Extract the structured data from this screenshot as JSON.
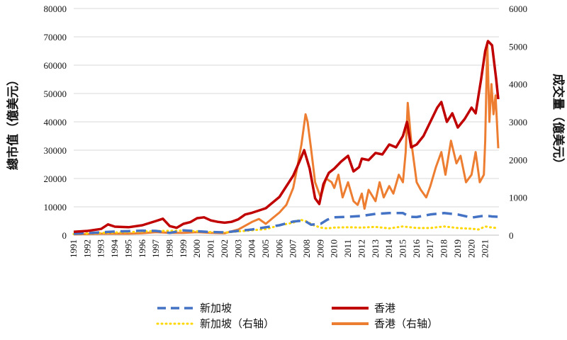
{
  "chart_data": {
    "type": "line",
    "xlabel": "",
    "ylabel": "總市值（億美元）",
    "ylabel_right": "成交量（億美元）",
    "ylim": [
      0,
      80000
    ],
    "ylim_right": [
      0,
      6000
    ],
    "yticks": [
      0,
      10000,
      20000,
      30000,
      40000,
      50000,
      60000,
      70000,
      80000
    ],
    "yticks_right": [
      0,
      1000,
      2000,
      3000,
      4000,
      5000,
      6000
    ],
    "xlim": [
      1991,
      2022
    ],
    "xticks": [
      "1991",
      "1992",
      "1993",
      "1994",
      "1995",
      "1996",
      "1997",
      "1998",
      "1999",
      "2000",
      "2001",
      "2002",
      "2003",
      "2004",
      "2005",
      "2006",
      "2007",
      "2008",
      "2009",
      "2010",
      "2011",
      "2012",
      "2013",
      "2014",
      "2015",
      "2016",
      "2017",
      "2018",
      "2019",
      "2020",
      "2021"
    ],
    "grid": "horizontal",
    "legend_position": "bottom",
    "series": [
      {
        "name": "新加坡",
        "axis": "left",
        "color": "#4472C4",
        "style": "dashed",
        "x": [
          1991,
          1992,
          1993,
          1994,
          1995,
          1996,
          1997,
          1998,
          1999,
          2000,
          2001,
          2002,
          2003,
          2004,
          2005,
          2006,
          2007,
          2007.8,
          2008.3,
          2009,
          2009.5,
          2010,
          2011,
          2012,
          2013,
          2014,
          2015,
          2015.5,
          2016,
          2017,
          2018,
          2019,
          2020,
          2021,
          2021.5,
          2021.9
        ],
        "values": [
          500,
          700,
          1000,
          1300,
          1400,
          1600,
          1500,
          800,
          1700,
          1400,
          1100,
          1000,
          1500,
          2000,
          2800,
          3500,
          4800,
          5200,
          3700,
          4000,
          5500,
          6300,
          6500,
          6800,
          7500,
          7800,
          7800,
          6500,
          6400,
          7300,
          7800,
          7300,
          6200,
          6900,
          6600,
          6500
        ]
      },
      {
        "name": "香港",
        "axis": "left",
        "color": "#C00000",
        "style": "solid",
        "x": [
          1991,
          1992,
          1993,
          1993.5,
          1994,
          1995,
          1996,
          1997,
          1997.5,
          1998,
          1998.5,
          1999,
          1999.5,
          2000,
          2000.5,
          2001,
          2001.5,
          2002,
          2002.5,
          2003,
          2003.5,
          2004,
          2005,
          2006,
          2007,
          2007.5,
          2007.8,
          2008.2,
          2008.6,
          2008.9,
          2009.2,
          2009.6,
          2010,
          2010.5,
          2011,
          2011.4,
          2011.8,
          2012,
          2012.5,
          2013,
          2013.5,
          2014,
          2014.5,
          2015,
          2015.3,
          2015.6,
          2016,
          2016.5,
          2017,
          2017.5,
          2017.8,
          2018.2,
          2018.6,
          2019,
          2019.5,
          2020,
          2020.3,
          2020.7,
          2021,
          2021.2,
          2021.5,
          2021.8,
          2021.95
        ],
        "values": [
          1200,
          1500,
          2200,
          3800,
          3000,
          2800,
          3500,
          5000,
          5800,
          3200,
          2600,
          4000,
          4600,
          6000,
          6300,
          5200,
          4700,
          4400,
          4700,
          5600,
          7300,
          7900,
          9500,
          13500,
          21000,
          26500,
          30000,
          23500,
          13000,
          11000,
          18000,
          22000,
          23500,
          26000,
          28000,
          22500,
          24000,
          27000,
          26500,
          29000,
          28500,
          32000,
          31000,
          35000,
          40000,
          31000,
          32000,
          35000,
          40000,
          45000,
          47000,
          40000,
          43000,
          38000,
          41000,
          45000,
          43000,
          55000,
          65000,
          68500,
          67000,
          55000,
          48000
        ]
      },
      {
        "name": "新加坡（右轴）",
        "axis": "right",
        "color": "#FFD700",
        "style": "dotted",
        "x": [
          1991,
          1993,
          1995,
          1997,
          1999,
          2001,
          2002,
          2003,
          2004,
          2005,
          2006,
          2007,
          2007.5,
          2008,
          2008.5,
          2009,
          2009.5,
          2010,
          2011,
          2012,
          2013,
          2014,
          2015,
          2016,
          2017,
          2018,
          2019,
          2020,
          2020.5,
          2021,
          2021.5,
          2021.95
        ],
        "values": [
          30,
          60,
          80,
          110,
          120,
          80,
          70,
          100,
          130,
          160,
          260,
          330,
          410,
          360,
          260,
          200,
          180,
          200,
          210,
          200,
          220,
          180,
          230,
          190,
          190,
          230,
          190,
          170,
          150,
          230,
          200,
          190
        ]
      },
      {
        "name": "香港（右轴）",
        "axis": "right",
        "color": "#ED7D31",
        "style": "solid",
        "x": [
          1991,
          1992,
          1993,
          1994,
          1995,
          1996,
          1997,
          1998,
          1999,
          2000,
          2001,
          2002,
          2003,
          2003.5,
          2004,
          2004.5,
          2005,
          2005.5,
          2006,
          2006.5,
          2007,
          2007.3,
          2007.6,
          2007.9,
          2008.05,
          2008.3,
          2008.6,
          2009,
          2009.4,
          2009.8,
          2010,
          2010.3,
          2010.6,
          2011,
          2011.4,
          2011.7,
          2012,
          2012.2,
          2012.5,
          2013,
          2013.3,
          2013.6,
          2014,
          2014.3,
          2014.7,
          2015,
          2015.2,
          2015.35,
          2015.6,
          2016,
          2016.3,
          2016.7,
          2017,
          2017.4,
          2017.8,
          2018.1,
          2018.5,
          2018.9,
          2019.2,
          2019.6,
          2020,
          2020.3,
          2020.6,
          2020.9,
          2021,
          2021.15,
          2021.3,
          2021.45,
          2021.6,
          2021.75,
          2021.95
        ],
        "values": [
          20,
          30,
          40,
          40,
          40,
          50,
          80,
          60,
          60,
          80,
          60,
          50,
          150,
          250,
          350,
          430,
          300,
          450,
          600,
          800,
          1250,
          1800,
          2400,
          3200,
          3000,
          2300,
          1400,
          1000,
          1500,
          1400,
          1250,
          1600,
          1000,
          1400,
          900,
          800,
          1100,
          700,
          1200,
          900,
          1400,
          1000,
          1300,
          1100,
          1600,
          1400,
          2200,
          3500,
          2500,
          1400,
          1200,
          1000,
          1300,
          1800,
          2200,
          1600,
          2500,
          1900,
          2100,
          1400,
          1600,
          2200,
          1400,
          1600,
          2500,
          5100,
          3000,
          4000,
          3200,
          3700,
          2300
        ]
      }
    ]
  }
}
